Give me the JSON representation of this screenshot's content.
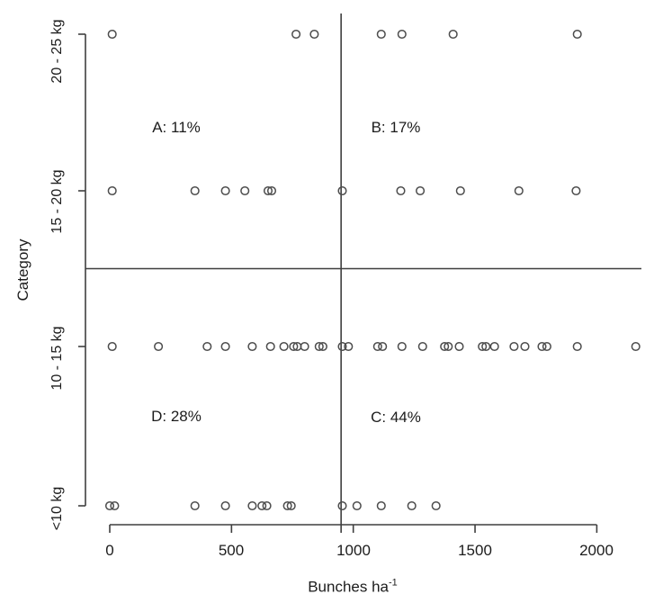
{
  "figure": {
    "background": "#ffffff",
    "line_color": "#3f3f3f",
    "point_stroke_color": "#4d4d4d",
    "text_color": "#1c1c1c"
  },
  "chart_data": {
    "type": "scatter",
    "title": "",
    "xlabel_base": "Bunches ha",
    "xlabel_sup": "-1",
    "ylabel": "Category",
    "xlim": [
      0,
      2000
    ],
    "x_ticks": [
      0,
      500,
      1000,
      1500,
      2000
    ],
    "grid": false,
    "legend": false,
    "point_style": "open-circle",
    "categories": [
      "20 - 25 kg",
      "15 - 20 kg",
      "10 - 15 kg",
      "<10 kg"
    ],
    "series": [
      {
        "category": "20 - 25 kg",
        "x": [
          10,
          765,
          840,
          1115,
          1200,
          1410,
          1920
        ]
      },
      {
        "category": "15 - 20 kg",
        "x": [
          10,
          350,
          475,
          555,
          650,
          665,
          955,
          1195,
          1275,
          1440,
          1680,
          1915
        ]
      },
      {
        "category": "10 - 15 kg",
        "x": [
          10,
          200,
          400,
          475,
          585,
          660,
          715,
          755,
          770,
          800,
          860,
          875,
          955,
          980,
          1100,
          1120,
          1200,
          1285,
          1375,
          1390,
          1435,
          1530,
          1545,
          1580,
          1660,
          1705,
          1775,
          1795,
          1920,
          2160
        ]
      },
      {
        "category": "<10 kg",
        "x": [
          0,
          20,
          350,
          475,
          585,
          625,
          645,
          730,
          745,
          955,
          1015,
          1115,
          1240,
          1340
        ]
      }
    ],
    "quadrants": {
      "divider_x_value": 950,
      "divider_y_between": [
        "15 - 20 kg",
        "10 - 15 kg"
      ],
      "labels": [
        {
          "id": "A",
          "text": "A: 11%"
        },
        {
          "id": "B",
          "text": "B: 17%"
        },
        {
          "id": "D",
          "text": "D: 28%"
        },
        {
          "id": "C",
          "text": "C: 44%"
        }
      ]
    }
  }
}
